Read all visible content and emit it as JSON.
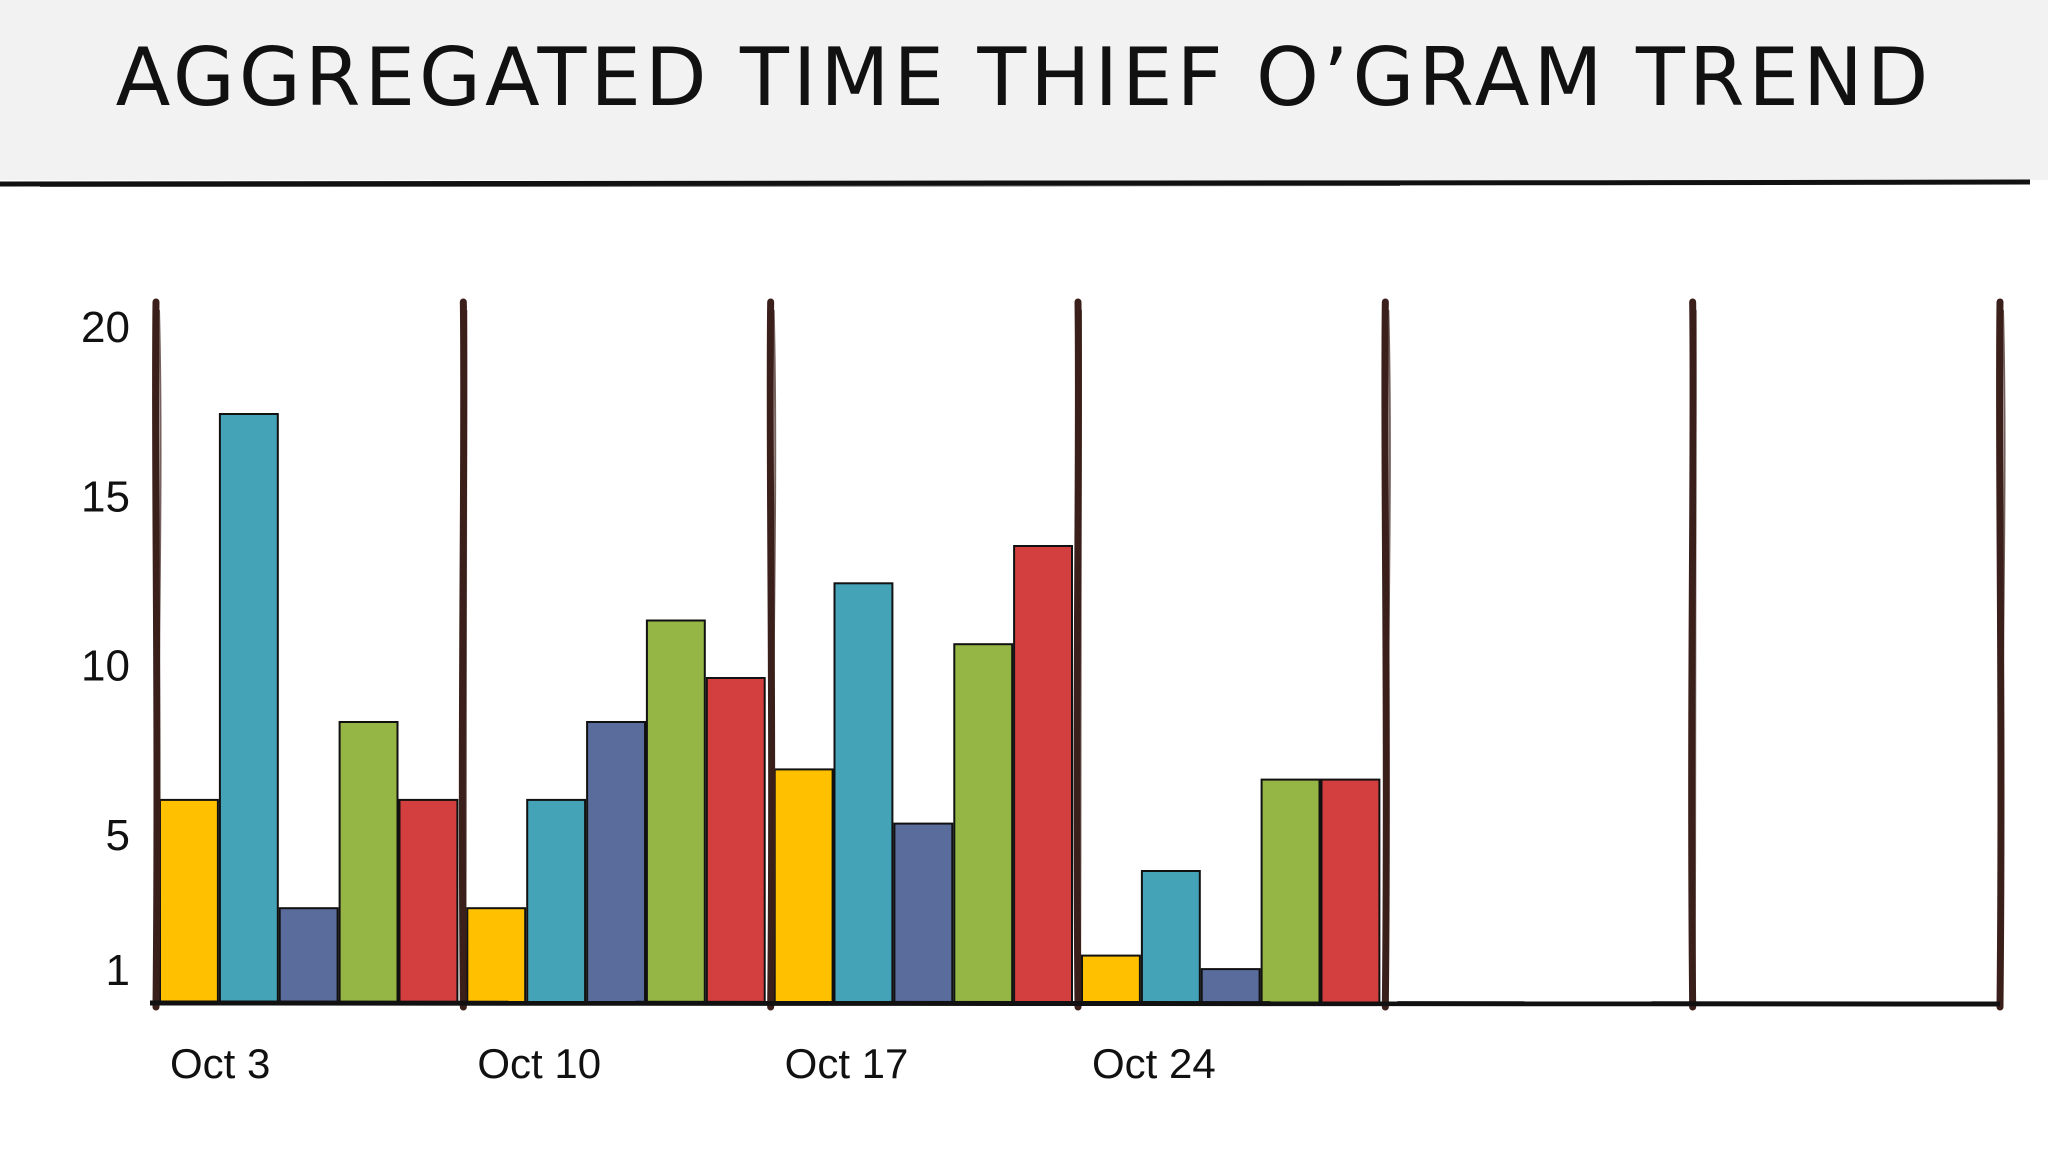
{
  "title": "AGGREGATED TIME THIEF O’GRAM TREND",
  "colors": {
    "title_band": "#f2f2f2",
    "frame": "#3b1f1a",
    "series": [
      "#ffc000",
      "#45a3b8",
      "#596c9c",
      "#95b545",
      "#d33f3e"
    ]
  },
  "chart_data": {
    "type": "bar",
    "title": "AGGREGATED TIME THIEF O’GRAM TREND",
    "xlabel": "",
    "ylabel": "",
    "ylim": [
      0,
      20
    ],
    "yticks": [
      "1",
      "5",
      "10",
      "15",
      "20"
    ],
    "categories": [
      "Oct 3",
      "Oct 10",
      "Oct 17",
      "Oct 24",
      "",
      ""
    ],
    "series": [
      {
        "values": [
          6,
          2.8,
          6.9,
          1.4,
          null,
          null
        ]
      },
      {
        "values": [
          17.4,
          6,
          12.4,
          3.9,
          null,
          null
        ]
      },
      {
        "values": [
          2.8,
          8.3,
          5.3,
          1,
          null,
          null
        ]
      },
      {
        "values": [
          8.3,
          11.3,
          10.6,
          6.6,
          null,
          null
        ]
      },
      {
        "values": [
          6,
          9.6,
          13.5,
          6.6,
          null,
          null
        ]
      }
    ],
    "grid": false,
    "legend": "none"
  }
}
